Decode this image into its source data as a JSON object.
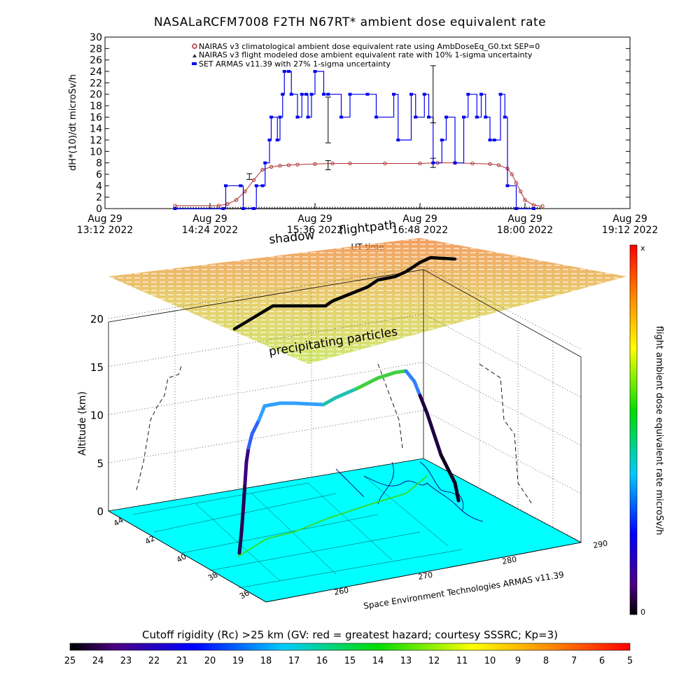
{
  "title": "NASALaRCFM7008  F2TH N67RT* ambient dose equivalent rate",
  "colors": {
    "nairas_clim": "#b03030",
    "nairas_flight": "#404040",
    "armas": "#0000ee",
    "sea": "#00ffff",
    "flightpath": "#000000"
  },
  "chart_data": [
    {
      "type": "line",
      "ylabel": "dH*(10)/dt microSv/h",
      "xlabel": "UT time",
      "ylim": [
        0,
        30
      ],
      "yticks": [
        0,
        2,
        4,
        6,
        8,
        10,
        12,
        14,
        16,
        18,
        20,
        22,
        24,
        26,
        28,
        30
      ],
      "xlim_hours": [
        13.2,
        19.2
      ],
      "xticks": [
        {
          "line1": "Aug 29",
          "line2": "13:12 2022",
          "h": 13.2
        },
        {
          "line1": "Aug 29",
          "line2": "14:24 2022",
          "h": 14.4
        },
        {
          "line1": "Aug 29",
          "line2": "15:36 2022",
          "h": 15.6
        },
        {
          "line1": "Aug 29",
          "line2": "16:48 2022",
          "h": 16.8
        },
        {
          "line1": "Aug 29",
          "line2": "18:00 2022",
          "h": 18.0
        },
        {
          "line1": "Aug 29",
          "line2": "19:12 2022",
          "h": 19.2
        }
      ],
      "legend_position": "top-right",
      "series": [
        {
          "name": "NAIRAS v3 climatological ambient dose equivalent rate using AmbDoseEq_G0.txt SEP=0",
          "x": [
            14.0,
            14.5,
            14.6,
            14.7,
            14.8,
            14.9,
            15.0,
            15.1,
            15.2,
            15.3,
            15.4,
            15.6,
            15.8,
            16.0,
            16.4,
            16.8,
            17.0,
            17.2,
            17.4,
            17.6,
            17.7,
            17.8,
            17.85,
            17.9,
            17.95,
            18.0,
            18.1,
            18.2
          ],
          "values": [
            0.5,
            0.5,
            0.8,
            1.5,
            3.0,
            5.0,
            6.8,
            7.3,
            7.5,
            7.6,
            7.7,
            7.8,
            7.9,
            7.9,
            7.9,
            7.9,
            8.0,
            8.0,
            7.9,
            7.8,
            7.6,
            7.0,
            6.0,
            4.5,
            3.0,
            1.5,
            0.6,
            0.4
          ]
        },
        {
          "name": "NAIRAS v3 flight modeled dose ambient equivalent rate with 10% 1-sigma uncertainty",
          "x": [
            14.0,
            18.2
          ],
          "values": [
            0,
            0
          ],
          "error_bars": [
            {
              "x": 14.85,
              "y": 5.6,
              "err": 0.5
            },
            {
              "x": 15.75,
              "y": 7.6,
              "err": 0.8
            },
            {
              "x": 16.95,
              "y": 8.0,
              "err": 0.8
            }
          ]
        },
        {
          "name": "SET ARMAS v11.39 with 27% 1-sigma uncertainty",
          "x": [
            14.0,
            14.55,
            14.58,
            14.75,
            14.78,
            14.9,
            14.93,
            15.0,
            15.03,
            15.08,
            15.1,
            15.17,
            15.2,
            15.23,
            15.25,
            15.3,
            15.33,
            15.4,
            15.45,
            15.5,
            15.52,
            15.56,
            15.6,
            15.7,
            15.75,
            15.9,
            16.0,
            16.2,
            16.3,
            16.5,
            16.55,
            16.7,
            16.75,
            16.85,
            16.9,
            16.95,
            17.05,
            17.1,
            17.2,
            17.3,
            17.35,
            17.45,
            17.5,
            17.55,
            17.6,
            17.65,
            17.72,
            17.77,
            17.8,
            17.9,
            18.1
          ],
          "values": [
            0,
            0,
            4,
            4,
            0,
            0,
            4,
            4,
            8,
            12,
            16,
            12,
            16,
            20,
            24,
            24,
            20,
            16,
            20,
            20,
            16,
            20,
            24,
            20,
            20,
            16,
            20,
            20,
            16,
            20,
            12,
            20,
            16,
            20,
            16,
            8,
            12,
            16,
            8,
            16,
            20,
            16,
            20,
            16,
            12,
            12,
            20,
            16,
            4,
            0,
            0
          ],
          "error_bars": [
            {
              "x": 15.75,
              "y": 15.5,
              "err": 4.0
            },
            {
              "x": 16.95,
              "y": 20.0,
              "err": 5.0
            }
          ]
        }
      ]
    },
    {
      "type": "scatter",
      "zlabel": "Altitude (km)",
      "zlim": [
        0,
        20
      ],
      "zticks": [
        0,
        5,
        10,
        15,
        20
      ],
      "lat_ticks": [
        44,
        42,
        40,
        38,
        36
      ],
      "lon_ticks": [
        260,
        270,
        280,
        290
      ],
      "annotations": [
        "shadow",
        "flightpath",
        "precipitating particles"
      ],
      "credit": "Space Environment Technologies ARMAS v11.39"
    }
  ],
  "colorbar_right": {
    "label": "flight ambient dose equivalent rate microSv/h",
    "top": "x",
    "bottom": "0"
  },
  "colorbar_bottom": {
    "label": "Cutoff rigidity (Rc) >25 km (GV: red = greatest hazard; courtesy SSSRC; Kp=3)",
    "ticks": [
      "25",
      "24",
      "23",
      "22",
      "21",
      "20",
      "19",
      "18",
      "17",
      "16",
      "15",
      "14",
      "13",
      "12",
      "11",
      "10",
      "9",
      "8",
      "7",
      "6",
      "5"
    ]
  }
}
